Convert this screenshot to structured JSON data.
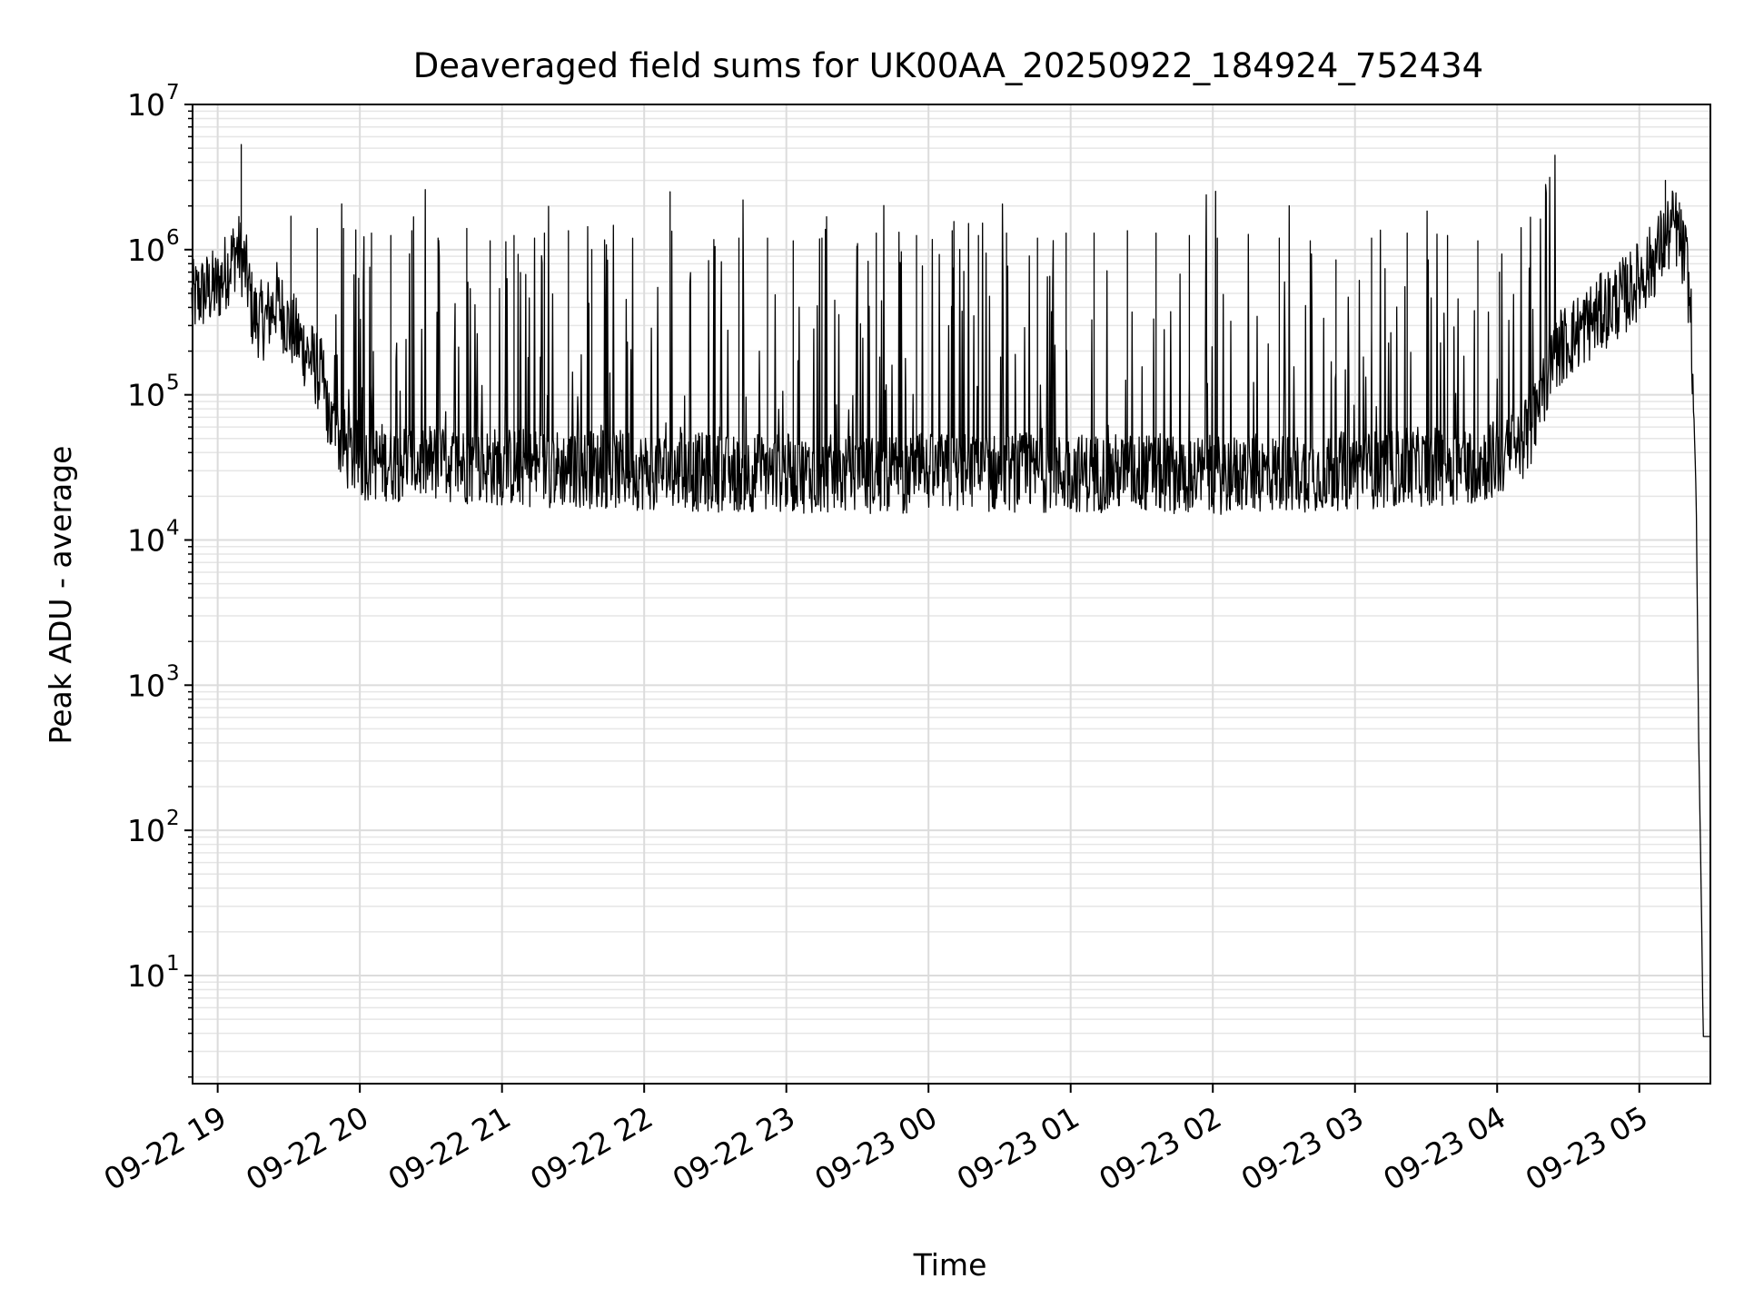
{
  "chart_data": {
    "type": "line",
    "title": "Deaveraged field sums for UK00AA_20250922_184924_752434",
    "xlabel": "Time",
    "ylabel": "Peak ADU - average",
    "yscale": "log",
    "ylim": [
      1.8,
      10000000
    ],
    "xlim": [
      "2025-09-22 18:49:24",
      "2025-09-23 05:30:00"
    ],
    "grid": "major and minor",
    "line_color": "#000000",
    "x_ticks": [
      {
        "value": "2025-09-22 19:00",
        "label": "09-22 19"
      },
      {
        "value": "2025-09-22 20:00",
        "label": "09-22 20"
      },
      {
        "value": "2025-09-22 21:00",
        "label": "09-22 21"
      },
      {
        "value": "2025-09-22 22:00",
        "label": "09-22 22"
      },
      {
        "value": "2025-09-22 23:00",
        "label": "09-22 23"
      },
      {
        "value": "2025-09-23 00:00",
        "label": "09-23 00"
      },
      {
        "value": "2025-09-23 01:00",
        "label": "09-23 01"
      },
      {
        "value": "2025-09-23 02:00",
        "label": "09-23 02"
      },
      {
        "value": "2025-09-23 03:00",
        "label": "09-23 03"
      },
      {
        "value": "2025-09-23 04:00",
        "label": "09-23 04"
      },
      {
        "value": "2025-09-23 05:00",
        "label": "09-23 05"
      }
    ],
    "y_ticks": [
      {
        "value": 10,
        "base": "10",
        "exp": "1"
      },
      {
        "value": 100,
        "base": "10",
        "exp": "2"
      },
      {
        "value": 1000,
        "base": "10",
        "exp": "3"
      },
      {
        "value": 10000,
        "base": "10",
        "exp": "4"
      },
      {
        "value": 100000,
        "base": "10",
        "exp": "5"
      },
      {
        "value": 1000000,
        "base": "10",
        "exp": "6"
      },
      {
        "value": 10000000,
        "base": "10",
        "exp": "7"
      }
    ],
    "series": [
      {
        "points": [
          [
            "2025-09-22 18:49",
            450000
          ],
          [
            "2025-09-22 18:55",
            520000
          ],
          [
            "2025-09-22 19:00",
            550000
          ],
          [
            "2025-09-22 19:05",
            800000
          ],
          [
            "2025-09-22 19:08",
            1000000
          ],
          [
            "2025-09-22 19:10",
            900000
          ],
          [
            "2025-09-22 19:12",
            700000
          ],
          [
            "2025-09-22 19:15",
            350000
          ],
          [
            "2025-09-22 19:20",
            320000
          ],
          [
            "2025-09-22 19:25",
            450000
          ],
          [
            "2025-09-22 19:30",
            300000
          ],
          [
            "2025-09-22 19:35",
            230000
          ],
          [
            "2025-09-22 19:40",
            170000
          ],
          [
            "2025-09-22 19:45",
            120000
          ],
          [
            "2025-09-22 19:48",
            60000
          ],
          [
            "2025-09-22 19:55",
            40000
          ],
          [
            "2025-09-22 20:00",
            35000
          ],
          [
            "2025-09-22 20:30",
            34000
          ],
          [
            "2025-09-22 21:00",
            32000
          ],
          [
            "2025-09-22 21:30",
            31000
          ],
          [
            "2025-09-22 22:00",
            30000
          ],
          [
            "2025-09-22 22:30",
            29000
          ],
          [
            "2025-09-22 23:00",
            29000
          ],
          [
            "2025-09-22 23:30",
            28000
          ],
          [
            "2025-09-23 00:00",
            29000
          ],
          [
            "2025-09-23 00:30",
            29000
          ],
          [
            "2025-09-23 01:00",
            29000
          ],
          [
            "2025-09-23 01:30",
            29000
          ],
          [
            "2025-09-23 02:00",
            28000
          ],
          [
            "2025-09-23 02:30",
            29000
          ],
          [
            "2025-09-23 03:00",
            30000
          ],
          [
            "2025-09-23 03:30",
            32000
          ],
          [
            "2025-09-23 03:50",
            33000
          ],
          [
            "2025-09-23 04:05",
            38000
          ],
          [
            "2025-09-23 04:15",
            60000
          ],
          [
            "2025-09-23 04:20",
            120000
          ],
          [
            "2025-09-23 04:25",
            200000
          ],
          [
            "2025-09-23 04:35",
            280000
          ],
          [
            "2025-09-23 04:45",
            380000
          ],
          [
            "2025-09-23 04:55",
            500000
          ],
          [
            "2025-09-23 05:05",
            800000
          ],
          [
            "2025-09-23 05:10",
            1100000
          ],
          [
            "2025-09-23 05:15",
            1500000
          ],
          [
            "2025-09-23 05:18",
            1000000
          ],
          [
            "2025-09-23 05:20",
            800000
          ],
          [
            "2025-09-23 05:22",
            300000
          ],
          [
            "2025-09-23 05:24",
            20000
          ],
          [
            "2025-09-23 05:25",
            500
          ],
          [
            "2025-09-23 05:26",
            50
          ],
          [
            "2025-09-23 05:27",
            3.8
          ],
          [
            "2025-09-23 05:30",
            3.8
          ]
        ],
        "spikes": [
          [
            "2025-09-22 19:10",
            5300000
          ],
          [
            "2025-09-22 19:31",
            1700000
          ],
          [
            "2025-09-22 19:42",
            1400000
          ],
          [
            "2025-09-22 19:53",
            1400000
          ],
          [
            "2025-09-22 20:05",
            1300000
          ],
          [
            "2025-09-22 20:13",
            1250000
          ],
          [
            "2025-09-22 20:22",
            1350000
          ],
          [
            "2025-09-22 20:33",
            1200000
          ],
          [
            "2025-09-22 20:45",
            1400000
          ],
          [
            "2025-09-22 20:55",
            1150000
          ],
          [
            "2025-09-22 21:05",
            1250000
          ],
          [
            "2025-09-22 21:18",
            1300000
          ],
          [
            "2025-09-22 21:28",
            1350000
          ],
          [
            "2025-09-22 21:38",
            1000000
          ],
          [
            "2025-09-22 22:11",
            2500000
          ],
          [
            "2025-09-22 22:30",
            1050000
          ],
          [
            "2025-09-22 22:40",
            1200000
          ],
          [
            "2025-09-22 22:52",
            1200000
          ],
          [
            "2025-09-22 23:03",
            1150000
          ],
          [
            "2025-09-22 23:15",
            1200000
          ],
          [
            "2025-09-22 23:30",
            1100000
          ],
          [
            "2025-09-22 23:38",
            1300000
          ],
          [
            "2025-09-22 23:55",
            1250000
          ],
          [
            "2025-09-23 00:10",
            1350000
          ],
          [
            "2025-09-23 00:21",
            1250000
          ],
          [
            "2025-09-23 00:33",
            1300000
          ],
          [
            "2025-09-23 00:46",
            1200000
          ],
          [
            "2025-09-23 00:58",
            1300000
          ],
          [
            "2025-09-23 01:10",
            1300000
          ],
          [
            "2025-09-23 01:24",
            1350000
          ],
          [
            "2025-09-23 01:36",
            1300000
          ],
          [
            "2025-09-23 01:50",
            1250000
          ],
          [
            "2025-09-23 02:02",
            1200000
          ],
          [
            "2025-09-23 02:15",
            1200000
          ],
          [
            "2025-09-23 02:28",
            1200000
          ],
          [
            "2025-09-23 02:41",
            1150000
          ],
          [
            "2025-09-23 02:52",
            850000
          ],
          [
            "2025-09-23 03:07",
            1200000
          ],
          [
            "2025-09-23 03:22",
            1300000
          ],
          [
            "2025-09-23 03:39",
            1250000
          ],
          [
            "2025-09-23 03:52",
            1150000
          ],
          [
            "2025-09-23 04:01",
            700000
          ],
          [
            "2025-09-23 05:11",
            3000000
          ],
          [
            "2025-09-23 05:17",
            2100000
          ]
        ],
        "noise_band": [
          14000,
          70000
        ]
      }
    ]
  }
}
